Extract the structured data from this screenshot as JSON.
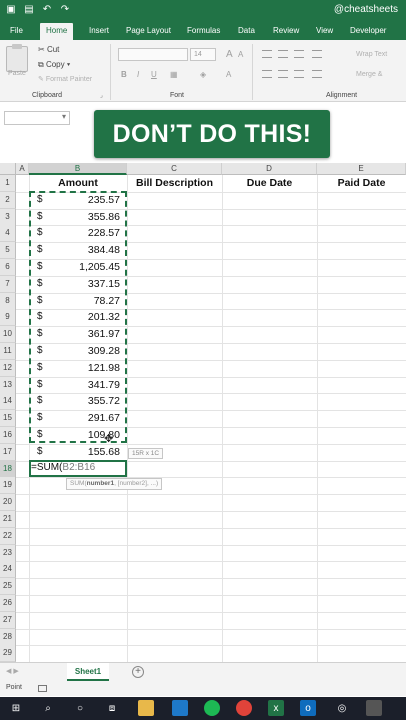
{
  "title_bar": {
    "handle": "@cheatsheets"
  },
  "tabs": [
    "File",
    "Home",
    "Insert",
    "Page Layout",
    "Formulas",
    "Data",
    "Review",
    "View",
    "Developer"
  ],
  "ribbon": {
    "clipboard": {
      "paste": "Paste",
      "cut": "Cut",
      "copy": "Copy",
      "format_painter": "Format Painter",
      "label": "Clipboard"
    },
    "font": {
      "size": "14",
      "bold": "B",
      "italic": "I",
      "underline": "U",
      "grow": "A",
      "shrink": "A",
      "label": "Font"
    },
    "alignment": {
      "wrap_text": "Wrap Text",
      "merge": "Merge &",
      "label": "Alignment"
    }
  },
  "banner": "DON’T DO THIS!",
  "columns": [
    "A",
    "B",
    "C",
    "D",
    "E"
  ],
  "rows": [
    "1",
    "2",
    "3",
    "4",
    "5",
    "6",
    "7",
    "8",
    "9",
    "10",
    "11",
    "12",
    "13",
    "14",
    "15",
    "16",
    "17",
    "18",
    "19",
    "20",
    "21",
    "22",
    "23",
    "24",
    "25",
    "26",
    "27",
    "28",
    "29"
  ],
  "headers": {
    "amount": "Amount",
    "bill_description": "Bill Description",
    "due_date": "Due Date",
    "paid_date": "Paid Date"
  },
  "currency": "$",
  "amounts": [
    "235.57",
    "355.86",
    "228.57",
    "384.48",
    "1,205.45",
    "337.15",
    "78.27",
    "201.32",
    "361.97",
    "309.28",
    "121.98",
    "341.79",
    "355.72",
    "291.67",
    "109.80",
    "155.68"
  ],
  "formula": {
    "prefix": "=SUM(",
    "range": "B2:B16"
  },
  "tooltips": {
    "selection_size": "15R x 1C",
    "function_name": "SUM(",
    "function_arg1": "number1",
    "function_rest": ", [number2], ...)"
  },
  "sheet_tab": "Sheet1",
  "status": "Point",
  "colors": {
    "accent": "#217346",
    "banner_text": "#ffffff"
  }
}
